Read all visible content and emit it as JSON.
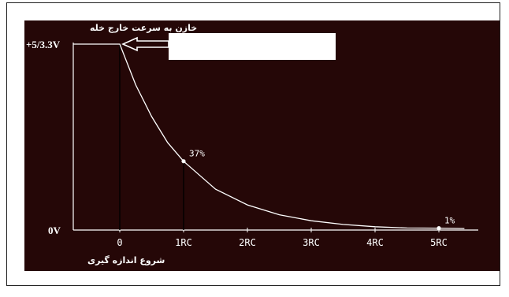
{
  "chart_data": {
    "type": "line",
    "title": "",
    "xlabel": "",
    "ylabel": "",
    "x_tick_labels": [
      "0",
      "1RC",
      "2RC",
      "3RC",
      "4RC",
      "5RC"
    ],
    "x_ticks": [
      0,
      1,
      2,
      3,
      4,
      5
    ],
    "y_tick_labels": [
      "+5/3.3V",
      "0V"
    ],
    "xlim": [
      -0.7,
      5.5
    ],
    "ylim": [
      0,
      1
    ],
    "series": [
      {
        "x": [
          -0.7,
          0,
          0.25,
          0.5,
          0.75,
          1,
          1.5,
          2,
          2.5,
          3,
          3.5,
          4,
          4.5,
          5,
          5.4
        ],
        "y": [
          1,
          1,
          0.78,
          0.61,
          0.47,
          0.37,
          0.22,
          0.135,
          0.082,
          0.05,
          0.03,
          0.018,
          0.011,
          0.01,
          0.008
        ]
      }
    ],
    "point_labels": [
      {
        "x": 1,
        "y": 0.37,
        "text": "37%"
      },
      {
        "x": 5,
        "y": 0.01,
        "text": "1%"
      }
    ],
    "annotations": {
      "top": "خازن به سرعت خارج خله",
      "bottom": "شروع اندازه گیری"
    },
    "colors": {
      "background": "#250707",
      "curve": "#ffffff",
      "axis": "#ffffff",
      "label": "#ffffff"
    },
    "grid": false
  }
}
